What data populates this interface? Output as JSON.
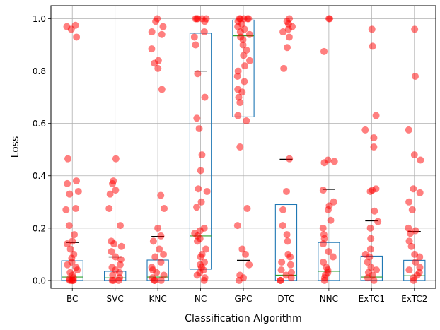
{
  "chart_data": {
    "type": "box",
    "xlabel": "Classification Algorithm",
    "ylabel": "Loss",
    "ylim": [
      -0.03,
      1.05
    ],
    "yticks": [
      0.0,
      0.2,
      0.4,
      0.6,
      0.8,
      1.0
    ],
    "ytick_labels": [
      "0.0",
      "0.2",
      "0.4",
      "0.6",
      "0.8",
      "1.0"
    ],
    "grid": true,
    "colors": {
      "box": "#1f77b4",
      "median": "#2ca02c",
      "mean": "#000000",
      "points": "#ff0000"
    },
    "categories": [
      "BC",
      "SVC",
      "KNC",
      "NC",
      "GPC",
      "DTC",
      "NNC",
      "ExTC1",
      "ExTC2"
    ],
    "boxes": [
      {
        "label": "BC",
        "q1": 0.0,
        "median": 0.013,
        "q3": 0.075,
        "mean": 0.145,
        "points": [
          0.975,
          0.97,
          0.96,
          0.93,
          0.465,
          0.38,
          0.37,
          0.34,
          0.33,
          0.275,
          0.27,
          0.21,
          0.175,
          0.15,
          0.14,
          0.12,
          0.1,
          0.085,
          0.07,
          0.06,
          0.05,
          0.04,
          0.03,
          0.02,
          0.01,
          0.005,
          0.0,
          0.0,
          0.0,
          0.0
        ]
      },
      {
        "label": "SVC",
        "q1": 0.0,
        "median": 0.01,
        "q3": 0.035,
        "mean": 0.09,
        "points": [
          0.465,
          0.38,
          0.37,
          0.345,
          0.33,
          0.275,
          0.21,
          0.15,
          0.14,
          0.13,
          0.11,
          0.09,
          0.08,
          0.06,
          0.05,
          0.04,
          0.03,
          0.02,
          0.01,
          0.0,
          0.0,
          0.0
        ]
      },
      {
        "label": "KNC",
        "q1": 0.0,
        "median": 0.013,
        "q3": 0.078,
        "mean": 0.168,
        "points": [
          1.0,
          0.99,
          0.97,
          0.95,
          0.94,
          0.885,
          0.84,
          0.83,
          0.81,
          0.73,
          0.325,
          0.275,
          0.2,
          0.17,
          0.15,
          0.12,
          0.1,
          0.09,
          0.07,
          0.05,
          0.04,
          0.03,
          0.02,
          0.01,
          0.0,
          0.0,
          0.0
        ]
      },
      {
        "label": "NC",
        "q1": 0.043,
        "median": 0.17,
        "q3": 0.945,
        "mean": 0.8,
        "points": [
          1.0,
          1.0,
          1.0,
          1.0,
          1.0,
          0.99,
          0.95,
          0.93,
          0.9,
          0.79,
          0.7,
          0.62,
          0.58,
          0.48,
          0.42,
          0.35,
          0.34,
          0.3,
          0.28,
          0.2,
          0.19,
          0.18,
          0.17,
          0.16,
          0.15,
          0.12,
          0.1,
          0.09,
          0.07,
          0.06,
          0.05,
          0.04,
          0.03,
          0.02,
          0.01,
          0.0
        ]
      },
      {
        "label": "GPC",
        "q1": 0.625,
        "median": 0.935,
        "q3": 0.995,
        "mean": 0.077,
        "points": [
          1.0,
          1.0,
          1.0,
          1.0,
          1.0,
          0.99,
          0.98,
          0.97,
          0.96,
          0.95,
          0.94,
          0.93,
          0.92,
          0.9,
          0.88,
          0.86,
          0.84,
          0.82,
          0.8,
          0.78,
          0.76,
          0.73,
          0.72,
          0.7,
          0.68,
          0.63,
          0.61,
          0.51,
          0.275,
          0.21,
          0.12,
          0.1,
          0.06,
          0.02,
          0.01,
          0.0
        ]
      },
      {
        "label": "DTC",
        "q1": 0.0,
        "median": 0.02,
        "q3": 0.29,
        "mean": 0.463,
        "points": [
          1.0,
          0.99,
          0.98,
          0.97,
          0.96,
          0.95,
          0.93,
          0.89,
          0.81,
          0.465,
          0.34,
          0.27,
          0.21,
          0.175,
          0.15,
          0.1,
          0.09,
          0.07,
          0.06,
          0.04,
          0.03,
          0.02,
          0.01,
          0.0,
          0.0
        ]
      },
      {
        "label": "NNC",
        "q1": 0.0,
        "median": 0.035,
        "q3": 0.145,
        "mean": 0.348,
        "points": [
          1.0,
          1.0,
          0.875,
          0.46,
          0.455,
          0.45,
          0.345,
          0.3,
          0.285,
          0.27,
          0.23,
          0.2,
          0.175,
          0.16,
          0.14,
          0.11,
          0.09,
          0.07,
          0.05,
          0.04,
          0.03,
          0.02,
          0.01,
          0.0
        ]
      },
      {
        "label": "ExTC1",
        "q1": 0.0,
        "median": 0.013,
        "q3": 0.093,
        "mean": 0.228,
        "points": [
          0.96,
          0.895,
          0.63,
          0.575,
          0.545,
          0.51,
          0.35,
          0.345,
          0.34,
          0.265,
          0.225,
          0.2,
          0.16,
          0.12,
          0.1,
          0.09,
          0.07,
          0.05,
          0.04,
          0.03,
          0.02,
          0.01,
          0.0
        ]
      },
      {
        "label": "ExTC2",
        "q1": 0.0,
        "median": 0.018,
        "q3": 0.077,
        "mean": 0.187,
        "points": [
          0.96,
          0.78,
          0.575,
          0.48,
          0.46,
          0.35,
          0.335,
          0.3,
          0.27,
          0.2,
          0.19,
          0.18,
          0.15,
          0.13,
          0.1,
          0.09,
          0.07,
          0.05,
          0.04,
          0.03,
          0.02,
          0.01,
          0.0
        ]
      }
    ]
  }
}
